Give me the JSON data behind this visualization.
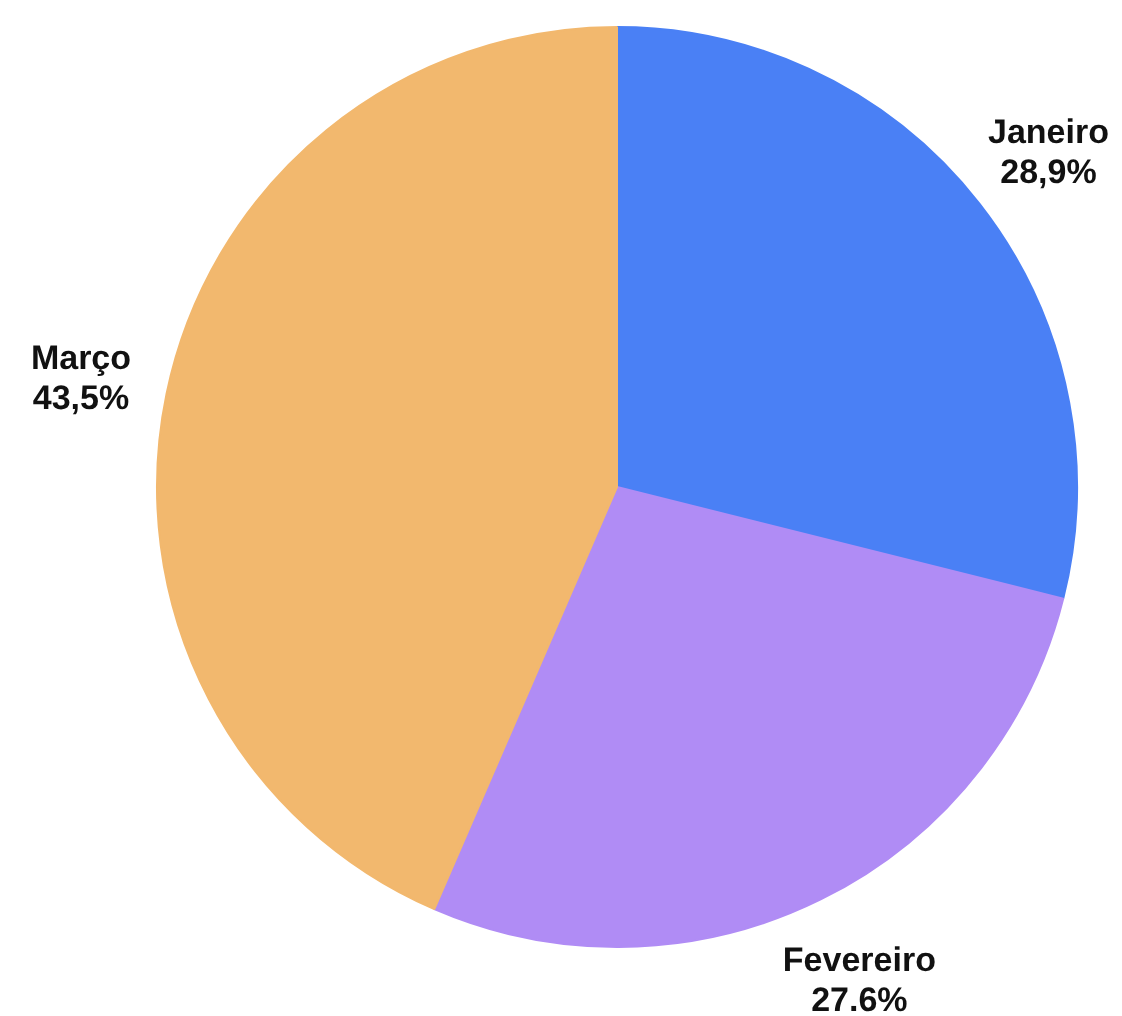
{
  "chart_data": {
    "type": "pie",
    "categories": [
      "Janeiro",
      "Fevereiro",
      "Março"
    ],
    "values": [
      28.9,
      27.6,
      43.5
    ],
    "colors": [
      "#4a80f5",
      "#b08cf5",
      "#f2b86e"
    ],
    "value_labels": [
      "28,9%",
      "27.6%",
      "43,5%"
    ]
  }
}
